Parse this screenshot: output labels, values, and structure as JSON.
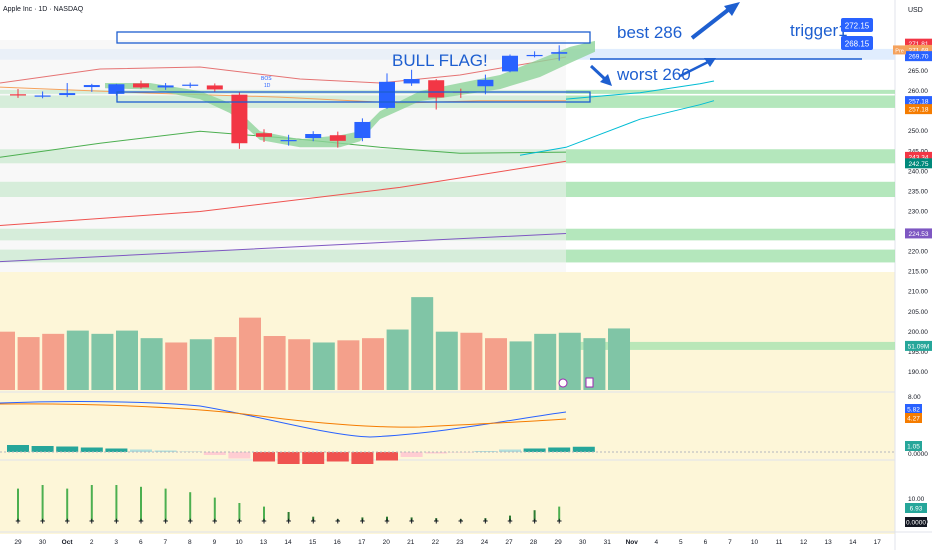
{
  "header": {
    "title": "Apple Inc · 1D · NASDAQ",
    "currency": "USD"
  },
  "colors": {
    "up": "#2962ff",
    "down": "#f23645",
    "band": "#a7e3b0",
    "cloud": "#8fd39a",
    "vol_up": "#80c5a6",
    "vol_down": "#f4a08b",
    "ma_blue": "#2962ff",
    "ma_orange": "#f5a25d",
    "ma_teal": "#00bcd4",
    "ma_green": "#4caf50",
    "ma_red": "#ef5350",
    "ma_purple": "#7e57c2",
    "bg_fill": "#fdf6d8",
    "annotation": "#1e5fd0"
  },
  "chart_data": {
    "type": "candlestick",
    "price_axis_ticks": [
      "265.00",
      "260.00",
      "255.00",
      "250.00",
      "245.00",
      "240.00",
      "235.00",
      "230.00",
      "225.00",
      "220.00",
      "215.00",
      "210.00",
      "205.00",
      "200.00",
      "195.00",
      "190.00"
    ],
    "ylim": [
      187,
      281
    ],
    "x_tick_labels": [
      "29",
      "30",
      "Oct",
      "2",
      "3",
      "6",
      "7",
      "8",
      "9",
      "10",
      "13",
      "14",
      "15",
      "16",
      "17",
      "20",
      "21",
      "22",
      "23",
      "24",
      "27",
      "28",
      "29",
      "30",
      "31",
      "Nov",
      "4",
      "5",
      "6",
      "7",
      "10",
      "11",
      "12",
      "13",
      "14",
      "17"
    ],
    "candles": [
      {
        "o": 259.2,
        "h": 260.5,
        "l": 258.3,
        "c": 258.9
      },
      {
        "o": 258.9,
        "h": 259.9,
        "l": 258.2,
        "c": 258.9
      },
      {
        "o": 259.0,
        "h": 262.0,
        "l": 258.5,
        "c": 259.5
      },
      {
        "o": 261.0,
        "h": 261.8,
        "l": 259.8,
        "c": 261.5
      },
      {
        "o": 259.3,
        "h": 261.8,
        "l": 258.9,
        "c": 261.7
      },
      {
        "o": 261.9,
        "h": 262.6,
        "l": 260.6,
        "c": 260.9
      },
      {
        "o": 260.9,
        "h": 262.0,
        "l": 260.3,
        "c": 261.4
      },
      {
        "o": 261.6,
        "h": 262.1,
        "l": 260.8,
        "c": 261.6
      },
      {
        "o": 261.4,
        "h": 261.9,
        "l": 259.8,
        "c": 260.4
      },
      {
        "o": 259.1,
        "h": 259.8,
        "l": 245.6,
        "c": 247.0
      },
      {
        "o": 249.5,
        "h": 250.5,
        "l": 247.3,
        "c": 248.6
      },
      {
        "o": 247.7,
        "h": 249.1,
        "l": 246.4,
        "c": 247.8
      },
      {
        "o": 248.3,
        "h": 250.0,
        "l": 247.5,
        "c": 249.3
      },
      {
        "o": 249.0,
        "h": 249.9,
        "l": 245.9,
        "c": 247.6
      },
      {
        "o": 248.3,
        "h": 253.2,
        "l": 247.5,
        "c": 252.3
      },
      {
        "o": 255.8,
        "h": 264.4,
        "l": 255.6,
        "c": 262.3
      },
      {
        "o": 261.9,
        "h": 265.3,
        "l": 261.3,
        "c": 263.0
      },
      {
        "o": 262.7,
        "h": 263.0,
        "l": 255.4,
        "c": 258.4
      },
      {
        "o": 259.9,
        "h": 260.6,
        "l": 258.3,
        "c": 259.6
      },
      {
        "o": 261.2,
        "h": 264.1,
        "l": 259.2,
        "c": 262.8
      },
      {
        "o": 264.9,
        "h": 269.1,
        "l": 264.7,
        "c": 268.8
      },
      {
        "o": 268.9,
        "h": 269.9,
        "l": 268.4,
        "c": 269.0
      },
      {
        "o": 269.3,
        "h": 271.4,
        "l": 267.6,
        "c": 269.7
      }
    ],
    "volume": [
      {
        "v": 54,
        "dir": "down"
      },
      {
        "v": 49,
        "dir": "down"
      },
      {
        "v": 52,
        "dir": "down"
      },
      {
        "v": 55,
        "dir": "up"
      },
      {
        "v": 52,
        "dir": "up"
      },
      {
        "v": 55,
        "dir": "up"
      },
      {
        "v": 48,
        "dir": "up"
      },
      {
        "v": 44,
        "dir": "down"
      },
      {
        "v": 47,
        "dir": "up"
      },
      {
        "v": 49,
        "dir": "down"
      },
      {
        "v": 67,
        "dir": "down"
      },
      {
        "v": 50,
        "dir": "down"
      },
      {
        "v": 47,
        "dir": "down"
      },
      {
        "v": 44,
        "dir": "up"
      },
      {
        "v": 46,
        "dir": "down"
      },
      {
        "v": 48,
        "dir": "down"
      },
      {
        "v": 56,
        "dir": "up"
      },
      {
        "v": 86,
        "dir": "up"
      },
      {
        "v": 54,
        "dir": "up"
      },
      {
        "v": 53,
        "dir": "down"
      },
      {
        "v": 48,
        "dir": "down"
      },
      {
        "v": 45,
        "dir": "up"
      },
      {
        "v": 52,
        "dir": "up"
      },
      {
        "v": 53,
        "dir": "up"
      },
      {
        "v": 48,
        "dir": "up"
      },
      {
        "v": 57,
        "dir": "up"
      }
    ],
    "bands": [
      {
        "lo": 267.8,
        "hi": 270.5,
        "color": "#dbeafe"
      },
      {
        "lo": 259.3,
        "hi": 260.3,
        "color": "#a7e3b0"
      },
      {
        "lo": 255.8,
        "hi": 258.9,
        "color": "#a7e3b0"
      },
      {
        "lo": 242.0,
        "hi": 245.5,
        "color": "#a7e3b0"
      },
      {
        "lo": 233.6,
        "hi": 237.4,
        "color": "#a7e3b0"
      },
      {
        "lo": 222.8,
        "hi": 225.7,
        "color": "#a7e3b0"
      },
      {
        "lo": 217.3,
        "hi": 220.5,
        "color": "#a7e3b0"
      }
    ],
    "price_labels": [
      {
        "price": 271.81,
        "text": "271.81",
        "bg": "#f23645",
        "fg": "#ffffff"
      },
      {
        "price": 270.25,
        "text": "271.68",
        "bg": "#f5a25d",
        "fg": "#ffffff"
      },
      {
        "price": 268.7,
        "text": "269.70",
        "bg": "#2962ff",
        "fg": "#ffffff"
      },
      {
        "price": 257.5,
        "text": "257.18",
        "bg": "#2962ff",
        "fg": "#ffffff"
      },
      {
        "price": 255.5,
        "text": "257.18",
        "bg": "#f57c00",
        "fg": "#ffffff"
      },
      {
        "price": 243.6,
        "text": "243.34",
        "bg": "#f23645",
        "fg": "#ffffff"
      },
      {
        "price": 242.0,
        "text": "242.75",
        "bg": "#00897b",
        "fg": "#ffffff"
      },
      {
        "price": 224.53,
        "text": "224.53",
        "bg": "#7e57c2",
        "fg": "#ffffff"
      },
      {
        "price": 196.5,
        "text": "51.09M",
        "bg": "#26a69a",
        "fg": "#ffffff"
      }
    ],
    "pre_label": "Pre",
    "macd_axis": [
      "8.00",
      "4.00",
      "0.0000"
    ],
    "macd_labels": [
      {
        "text": "5.82",
        "bg": "#2962ff"
      },
      {
        "text": "4.27",
        "bg": "#f57c00"
      },
      {
        "text": "1.05",
        "bg": "#26a69a"
      }
    ],
    "macd_hist": [
      1.4,
      1.2,
      1.1,
      0.9,
      0.7,
      0.5,
      0.3,
      0.1,
      -0.6,
      -1.3,
      -1.9,
      -2.4,
      -2.4,
      -1.9,
      -2.4,
      -1.7,
      -1.0,
      -0.3,
      -0.1,
      0.2,
      0.5,
      0.7,
      0.9,
      1.05
    ],
    "osc_axis": [
      "10.00",
      "0.0000"
    ],
    "osc_labels": [
      {
        "text": "6.93",
        "bg": "#26a69a",
        "fg": "#ffffff"
      },
      {
        "text": "0.0000",
        "bg": "#131722",
        "fg": "#ffffff"
      }
    ],
    "osc_values": [
      0.9,
      1.0,
      0.9,
      1.0,
      1.0,
      0.95,
      0.9,
      0.8,
      0.65,
      0.5,
      0.4,
      0.25,
      0.12,
      0.05,
      0.1,
      0.12,
      0.1,
      0.08,
      0.05,
      0.08,
      0.15,
      0.3,
      0.4
    ]
  },
  "annotations": {
    "best": "best 286",
    "worst": "worst 260",
    "trigger": "trigger1",
    "bull_flag": "BULL FLAG!",
    "trigger_price_1": "272.15",
    "trigger_price_2": "268.15",
    "bos": "BOS",
    "bos_sub": "1D"
  }
}
